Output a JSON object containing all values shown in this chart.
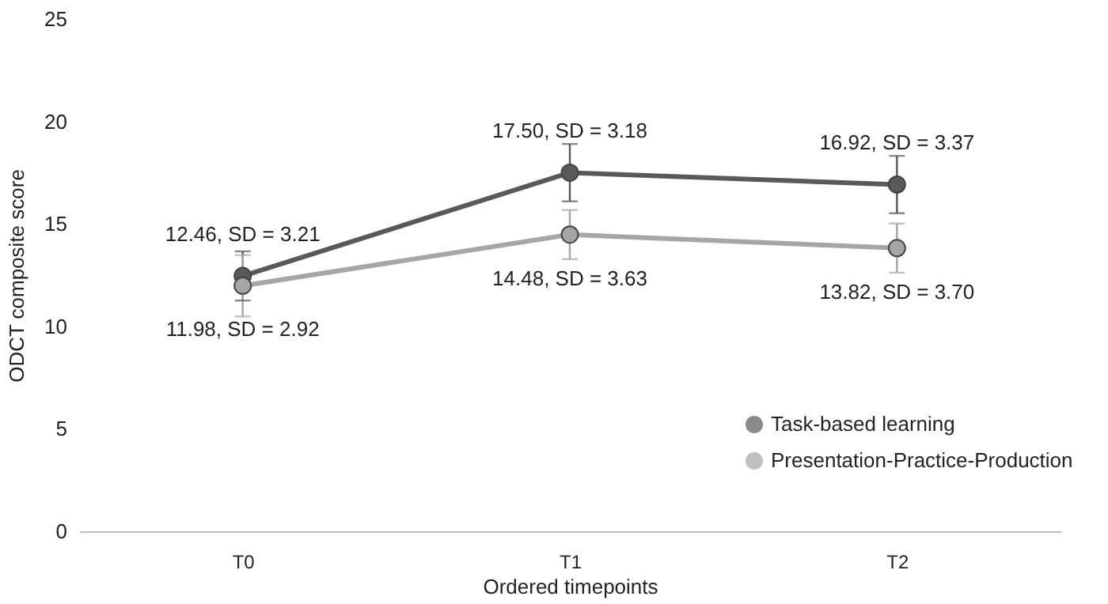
{
  "chart_data": {
    "type": "line",
    "xlabel": "Ordered timepoints",
    "ylabel": "ODCT composite score",
    "categories": [
      "T0",
      "T1",
      "T2"
    ],
    "series": [
      {
        "name": "Task-based learning",
        "color": "#595959",
        "values": [
          12.46,
          17.5,
          16.92
        ],
        "errors": [
          1.2,
          1.4,
          1.4
        ],
        "value_labels": [
          "12.46, SD = 3.21",
          "17.50, SD = 3.18",
          "16.92, SD = 3.37"
        ]
      },
      {
        "name": "Presentation-Practice-Production",
        "color": "#a6a6a6",
        "values": [
          11.98,
          14.48,
          13.82
        ],
        "errors": [
          1.5,
          1.2,
          1.2
        ],
        "value_labels": [
          "11.98, SD = 2.92",
          "14.48, SD = 3.63",
          "13.82, SD = 3.70"
        ]
      }
    ],
    "ylim": [
      0,
      25
    ],
    "yticks": [
      0,
      5,
      10,
      15,
      20,
      25
    ],
    "grid": false,
    "legend": "bottom right",
    "marker": "circle",
    "line_style": "solid"
  }
}
